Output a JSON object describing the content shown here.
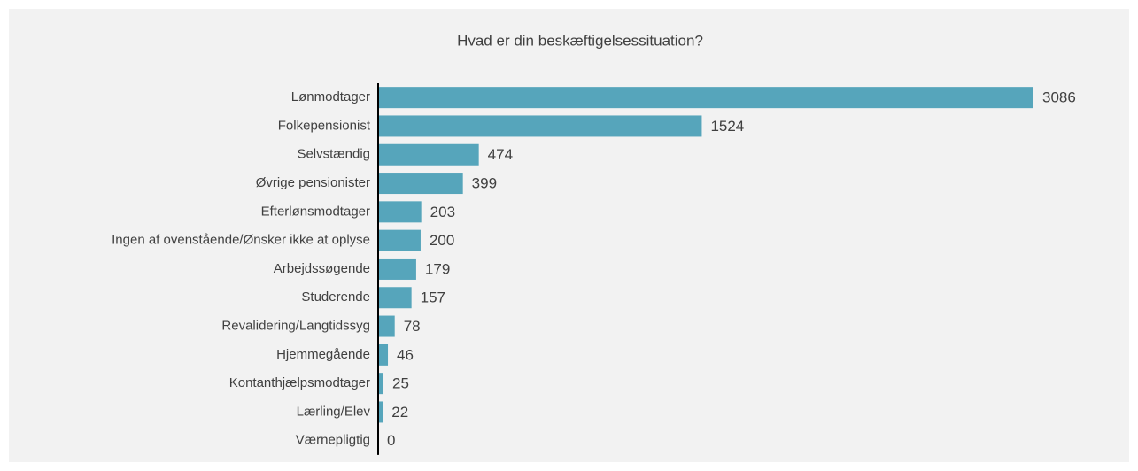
{
  "chart_data": {
    "type": "barh",
    "title": "Hvad er din beskæftigelsessituation?",
    "categories": [
      "Lønmodtager",
      "Folkepensionist",
      "Selvstændig",
      "Øvrige pensionister",
      "Efterlønsmodtager",
      "Ingen af ovenstående/Ønsker ikke at oplyse",
      "Arbejdssøgende",
      "Studerende",
      "Revalidering/Langtidssyg",
      "Hjemmegående",
      "Kontanthjælpsmodtager",
      "Lærling/Elev",
      "Værnepligtig"
    ],
    "values": [
      3086,
      1524,
      474,
      399,
      203,
      200,
      179,
      157,
      78,
      46,
      25,
      22,
      0
    ],
    "color": "#56a5bb"
  }
}
